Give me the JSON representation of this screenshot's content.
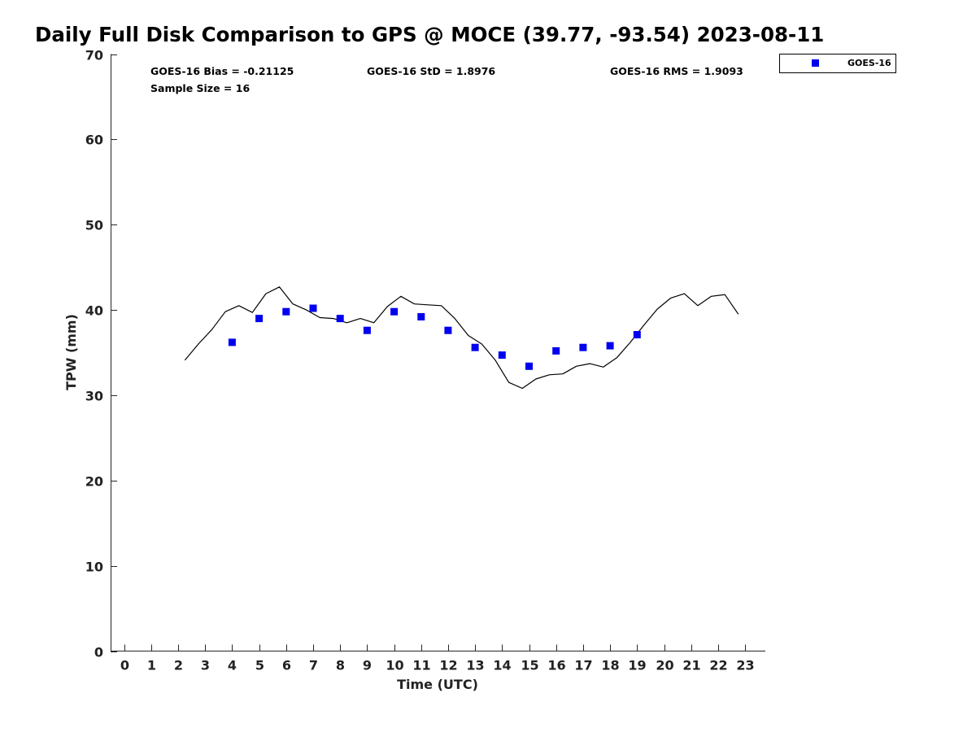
{
  "chart_data": {
    "type": "scatter",
    "title": "Daily Full Disk Comparison to GPS @ MOCE (39.77, -93.54) 2023-08-11",
    "xlabel": "Time (UTC)",
    "ylabel": "TPW (mm)",
    "xlim": [
      -0.5,
      23.75
    ],
    "ylim": [
      0,
      70
    ],
    "x_ticks": [
      0,
      1,
      2,
      3,
      4,
      5,
      6,
      7,
      8,
      9,
      10,
      11,
      12,
      13,
      14,
      15,
      16,
      17,
      18,
      19,
      20,
      21,
      22,
      23
    ],
    "y_ticks": [
      0,
      10,
      20,
      30,
      40,
      50,
      60,
      70
    ],
    "grid": false,
    "legend": {
      "position": "top-right",
      "entries": [
        "GOES-16"
      ]
    },
    "stats": {
      "bias": "GOES-16 Bias = -0.21125",
      "std": "GOES-16 StD = 1.8976",
      "rms": "GOES-16 RMS = 1.9093",
      "sample_size": "Sample Size = 16"
    },
    "series": [
      {
        "name": "GPS",
        "kind": "line",
        "color": "#000000",
        "x": [
          2.25,
          2.75,
          3.25,
          3.75,
          4.25,
          4.75,
          5.25,
          5.75,
          6.25,
          6.75,
          7.25,
          7.75,
          8.25,
          8.75,
          9.25,
          9.75,
          10.25,
          10.75,
          11.25,
          11.75,
          12.25,
          12.75,
          13.25,
          13.75,
          14.25,
          14.75,
          15.25,
          15.75,
          16.25,
          16.75,
          17.25,
          17.75,
          18.25,
          18.75,
          19.25,
          19.75,
          20.25,
          20.75,
          21.25,
          21.75,
          22.25,
          22.75
        ],
        "y": [
          34.1,
          36.0,
          37.7,
          39.8,
          40.5,
          39.7,
          41.9,
          42.7,
          40.7,
          40.0,
          39.1,
          39.0,
          38.5,
          39.0,
          38.5,
          40.4,
          41.6,
          40.7,
          40.6,
          40.5,
          39.0,
          37.0,
          36.0,
          34.1,
          31.5,
          30.8,
          31.9,
          32.4,
          32.5,
          33.4,
          33.7,
          33.3,
          34.4,
          36.2,
          38.2,
          40.1,
          41.4,
          41.9,
          40.5,
          41.6,
          41.8,
          39.5
        ]
      },
      {
        "name": "GOES-16",
        "kind": "scatter",
        "color": "#0000ee",
        "x": [
          4,
          5,
          6,
          7,
          8,
          9,
          10,
          11,
          12,
          13,
          14,
          15,
          16,
          17,
          18,
          19
        ],
        "y": [
          36.2,
          39.0,
          39.8,
          40.2,
          39.0,
          37.6,
          39.8,
          39.2,
          37.6,
          35.6,
          34.7,
          33.4,
          35.2,
          35.6,
          35.8,
          37.1
        ]
      }
    ]
  }
}
